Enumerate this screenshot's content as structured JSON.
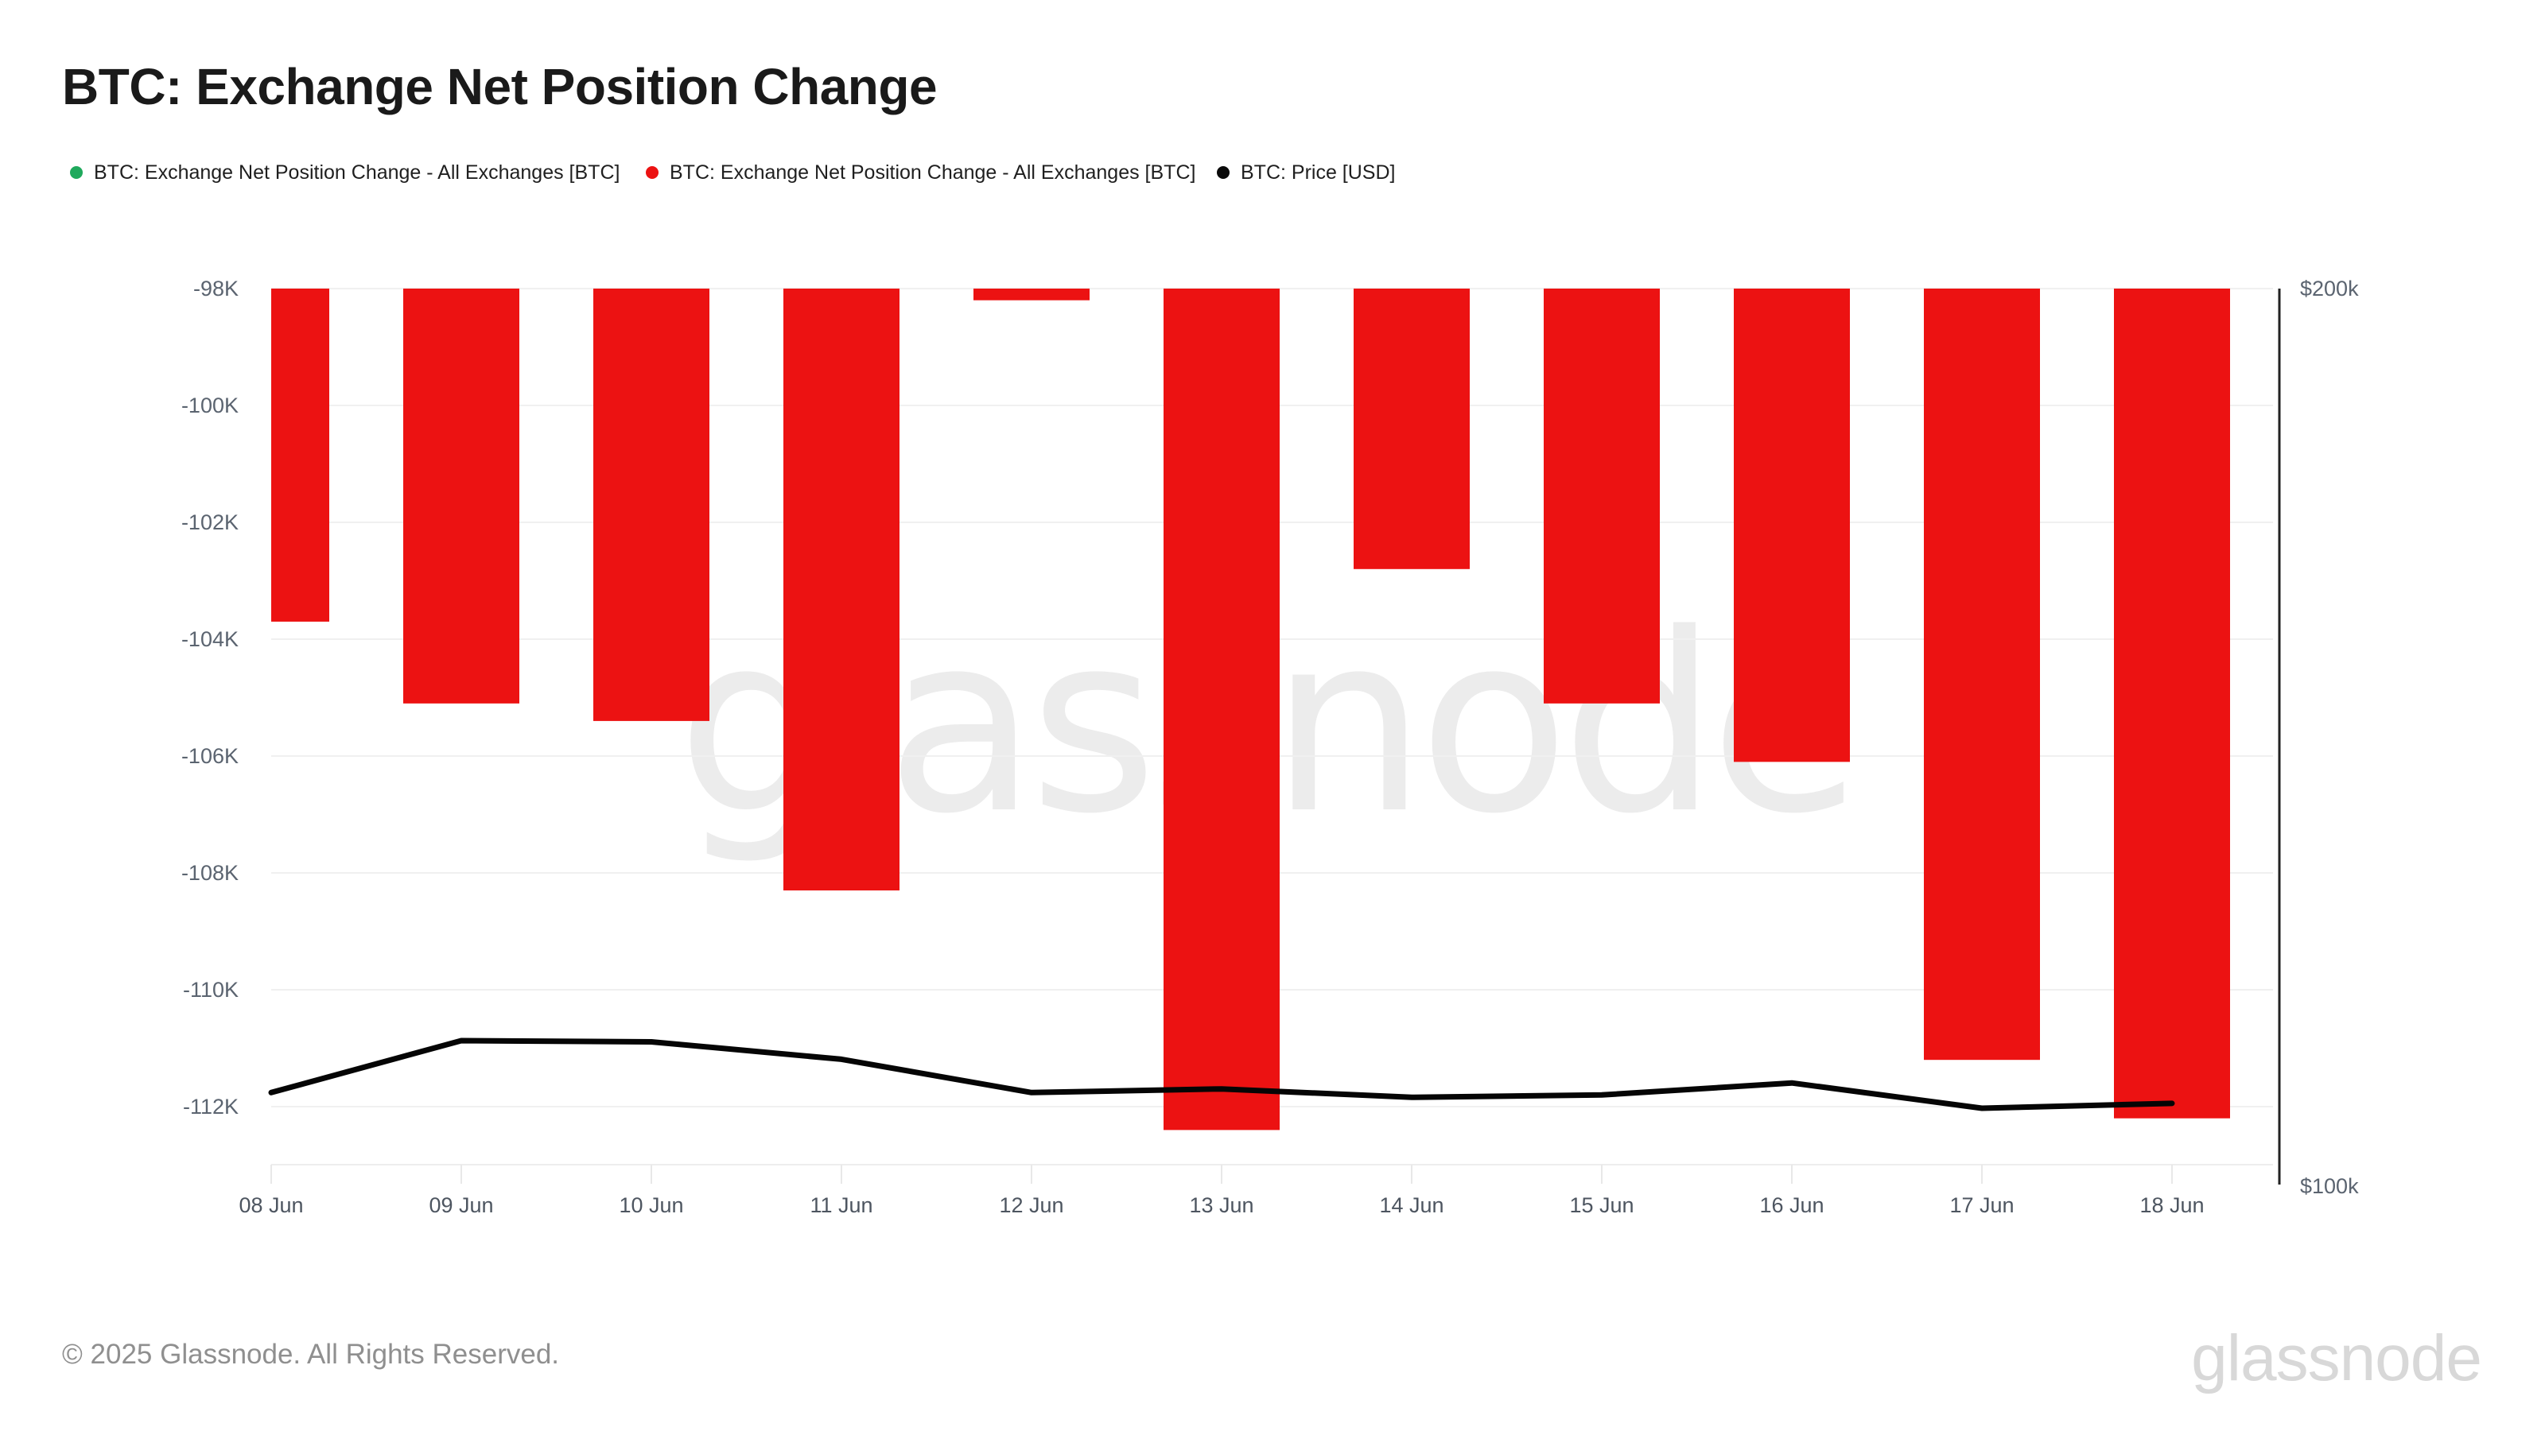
{
  "header": {
    "title": "BTC: Exchange Net Position Change"
  },
  "legend": {
    "items": [
      {
        "label": "BTC: Exchange Net Position Change - All Exchanges [BTC]",
        "color": "#1fa95c"
      },
      {
        "label": "BTC: Exchange Net Position Change - All Exchanges [BTC]",
        "color": "#ec1212"
      },
      {
        "label": "BTC: Price [USD]",
        "color": "#0a0a0a"
      }
    ]
  },
  "chart_data": {
    "type": "bar",
    "title": "BTC: Exchange Net Position Change",
    "categories": [
      "08 Jun",
      "09 Jun",
      "10 Jun",
      "11 Jun",
      "12 Jun",
      "13 Jun",
      "14 Jun",
      "15 Jun",
      "16 Jun",
      "17 Jun",
      "18 Jun"
    ],
    "series": [
      {
        "name": "BTC: Exchange Net Position Change - All Exchanges [BTC]",
        "type": "bar",
        "axis": "left",
        "unit": "BTC",
        "color": "#ec1212",
        "values": [
          -103700,
          -105100,
          -105400,
          -108300,
          -98200,
          -112400,
          -102800,
          -105100,
          -106100,
          -111200,
          -112200
        ]
      },
      {
        "name": "BTC: Price [USD]",
        "type": "line",
        "axis": "right",
        "unit": "USD",
        "color": "#050505",
        "values": [
          107200,
          111600,
          111500,
          110000,
          107200,
          107500,
          106800,
          107000,
          108000,
          105900,
          106300
        ]
      }
    ],
    "left_axis": {
      "tick_labels": [
        "-98K",
        "-100K",
        "-102K",
        "-104K",
        "-106K",
        "-108K",
        "-110K",
        "-112K"
      ],
      "tick_values": [
        -98000,
        -100000,
        -102000,
        -104000,
        -106000,
        -108000,
        -110000,
        -112000
      ],
      "range": [
        -113000,
        -98000
      ]
    },
    "right_axis": {
      "tick_labels": [
        "$200k",
        "$100k"
      ],
      "tick_values": [
        200000,
        100000
      ],
      "scale": "log",
      "range": [
        100000,
        200000
      ]
    },
    "legend_position": "top",
    "grid": "horizontal",
    "watermark": "glassnode"
  },
  "footer": {
    "copyright": "© 2025 Glassnode. All Rights Reserved.",
    "logo_text": "glassnode"
  }
}
